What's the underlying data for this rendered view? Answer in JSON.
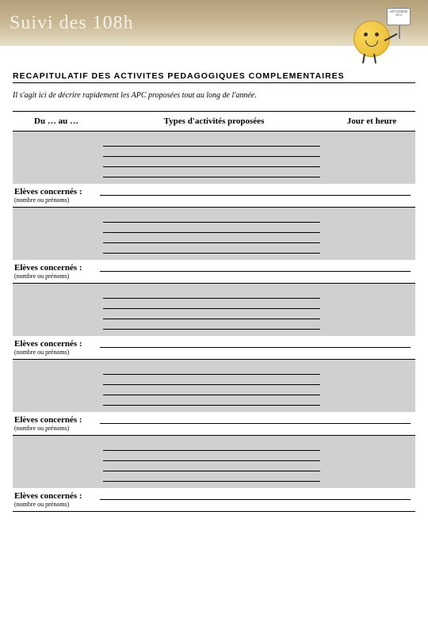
{
  "header": {
    "title": "Suivi des 108h"
  },
  "mascot": {
    "board_text": "SEPTEMBRE 2014"
  },
  "section": {
    "title": "RECAPITULATIF DES ACTIVITES PEDAGOGIQUES COMPLEMENTAIRES",
    "intro": "Il s'agit ici de décrire rapidement les APC proposées tout au long de l'année."
  },
  "table": {
    "headers": {
      "period": "Du … au …",
      "types": "Types d'activités proposées",
      "time": "Jour et heure"
    },
    "eleves_label": "Elèves concernés :",
    "eleves_sub": "(nombre ou prénoms)",
    "block_count": 5,
    "lines_per_block": 4
  },
  "style": {
    "banner_gradient_top": "#b4a078",
    "banner_gradient_bottom": "#e8dfc8",
    "block_bg": "#d0d0d0",
    "page_bg": "#ffffff",
    "mascot_fill": "#f2c94c"
  }
}
